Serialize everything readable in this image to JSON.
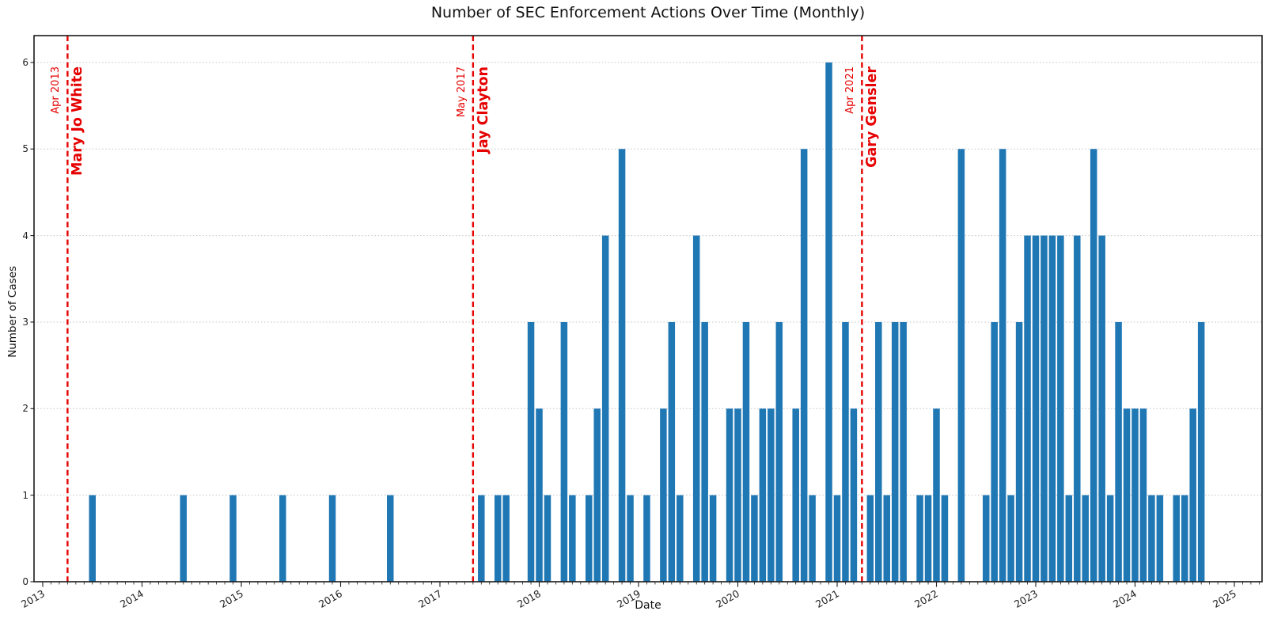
{
  "figure": {
    "title": "Number of SEC Enforcement Actions Over Time (Monthly)",
    "xlabel": "Date",
    "ylabel": "Number of Cases"
  },
  "chart_data": {
    "type": "bar",
    "title": "Number of SEC Enforcement Actions Over Time (Monthly)",
    "xlabel": "Date",
    "ylabel": "Number of Cases",
    "ylim": [
      0,
      6.31
    ],
    "yticks": [
      0,
      1,
      2,
      3,
      4,
      5,
      6
    ],
    "year_ticks": [
      2013,
      2014,
      2015,
      2016,
      2017,
      2018,
      2019,
      2020,
      2021,
      2022,
      2023,
      2024,
      2025
    ],
    "grid": "horizontal-dotted",
    "legend": "none",
    "colors": {
      "bar": "#1f77b4",
      "event_line": "#e60000",
      "grid": "#c2c2c2",
      "spine": "#1a1a1a",
      "text": "#111111",
      "tick_text": "#222222"
    },
    "series": [
      {
        "month": "2013-07",
        "count": 1
      },
      {
        "month": "2014-06",
        "count": 1
      },
      {
        "month": "2014-12",
        "count": 1
      },
      {
        "month": "2015-06",
        "count": 1
      },
      {
        "month": "2015-12",
        "count": 1
      },
      {
        "month": "2016-07",
        "count": 1
      },
      {
        "month": "2017-06",
        "count": 1
      },
      {
        "month": "2017-08",
        "count": 1
      },
      {
        "month": "2017-09",
        "count": 1
      },
      {
        "month": "2017-12",
        "count": 3
      },
      {
        "month": "2018-01",
        "count": 2
      },
      {
        "month": "2018-02",
        "count": 1
      },
      {
        "month": "2018-04",
        "count": 3
      },
      {
        "month": "2018-05",
        "count": 1
      },
      {
        "month": "2018-07",
        "count": 1
      },
      {
        "month": "2018-08",
        "count": 2
      },
      {
        "month": "2018-09",
        "count": 4
      },
      {
        "month": "2018-11",
        "count": 5
      },
      {
        "month": "2018-12",
        "count": 1
      },
      {
        "month": "2019-02",
        "count": 1
      },
      {
        "month": "2019-04",
        "count": 2
      },
      {
        "month": "2019-05",
        "count": 3
      },
      {
        "month": "2019-06",
        "count": 1
      },
      {
        "month": "2019-08",
        "count": 4
      },
      {
        "month": "2019-09",
        "count": 3
      },
      {
        "month": "2019-10",
        "count": 1
      },
      {
        "month": "2019-12",
        "count": 2
      },
      {
        "month": "2020-01",
        "count": 2
      },
      {
        "month": "2020-02",
        "count": 3
      },
      {
        "month": "2020-03",
        "count": 1
      },
      {
        "month": "2020-04",
        "count": 2
      },
      {
        "month": "2020-05",
        "count": 2
      },
      {
        "month": "2020-06",
        "count": 3
      },
      {
        "month": "2020-08",
        "count": 2
      },
      {
        "month": "2020-09",
        "count": 5
      },
      {
        "month": "2020-10",
        "count": 1
      },
      {
        "month": "2020-12",
        "count": 6
      },
      {
        "month": "2021-01",
        "count": 1
      },
      {
        "month": "2021-02",
        "count": 3
      },
      {
        "month": "2021-03",
        "count": 2
      },
      {
        "month": "2021-05",
        "count": 1
      },
      {
        "month": "2021-06",
        "count": 3
      },
      {
        "month": "2021-07",
        "count": 1
      },
      {
        "month": "2021-08",
        "count": 3
      },
      {
        "month": "2021-09",
        "count": 3
      },
      {
        "month": "2021-11",
        "count": 1
      },
      {
        "month": "2021-12",
        "count": 1
      },
      {
        "month": "2022-01",
        "count": 2
      },
      {
        "month": "2022-02",
        "count": 1
      },
      {
        "month": "2022-04",
        "count": 5
      },
      {
        "month": "2022-07",
        "count": 1
      },
      {
        "month": "2022-08",
        "count": 3
      },
      {
        "month": "2022-09",
        "count": 5
      },
      {
        "month": "2022-10",
        "count": 1
      },
      {
        "month": "2022-11",
        "count": 3
      },
      {
        "month": "2022-12",
        "count": 4
      },
      {
        "month": "2023-01",
        "count": 4
      },
      {
        "month": "2023-02",
        "count": 4
      },
      {
        "month": "2023-03",
        "count": 4
      },
      {
        "month": "2023-04",
        "count": 4
      },
      {
        "month": "2023-05",
        "count": 1
      },
      {
        "month": "2023-06",
        "count": 4
      },
      {
        "month": "2023-07",
        "count": 1
      },
      {
        "month": "2023-08",
        "count": 5
      },
      {
        "month": "2023-09",
        "count": 4
      },
      {
        "month": "2023-10",
        "count": 1
      },
      {
        "month": "2023-11",
        "count": 3
      },
      {
        "month": "2023-12",
        "count": 2
      },
      {
        "month": "2024-01",
        "count": 2
      },
      {
        "month": "2024-02",
        "count": 2
      },
      {
        "month": "2024-03",
        "count": 1
      },
      {
        "month": "2024-04",
        "count": 1
      },
      {
        "month": "2024-06",
        "count": 1
      },
      {
        "month": "2024-07",
        "count": 1
      },
      {
        "month": "2024-08",
        "count": 2
      },
      {
        "month": "2024-09",
        "count": 3
      }
    ],
    "event_lines": [
      {
        "month": "2013-04",
        "date_label": "Apr 2013",
        "name": "Mary Jo White"
      },
      {
        "month": "2017-05",
        "date_label": "May 2017",
        "name": "Jay Clayton"
      },
      {
        "month": "2021-04",
        "date_label": "Apr 2021",
        "name": "Gary Gensler"
      }
    ]
  }
}
